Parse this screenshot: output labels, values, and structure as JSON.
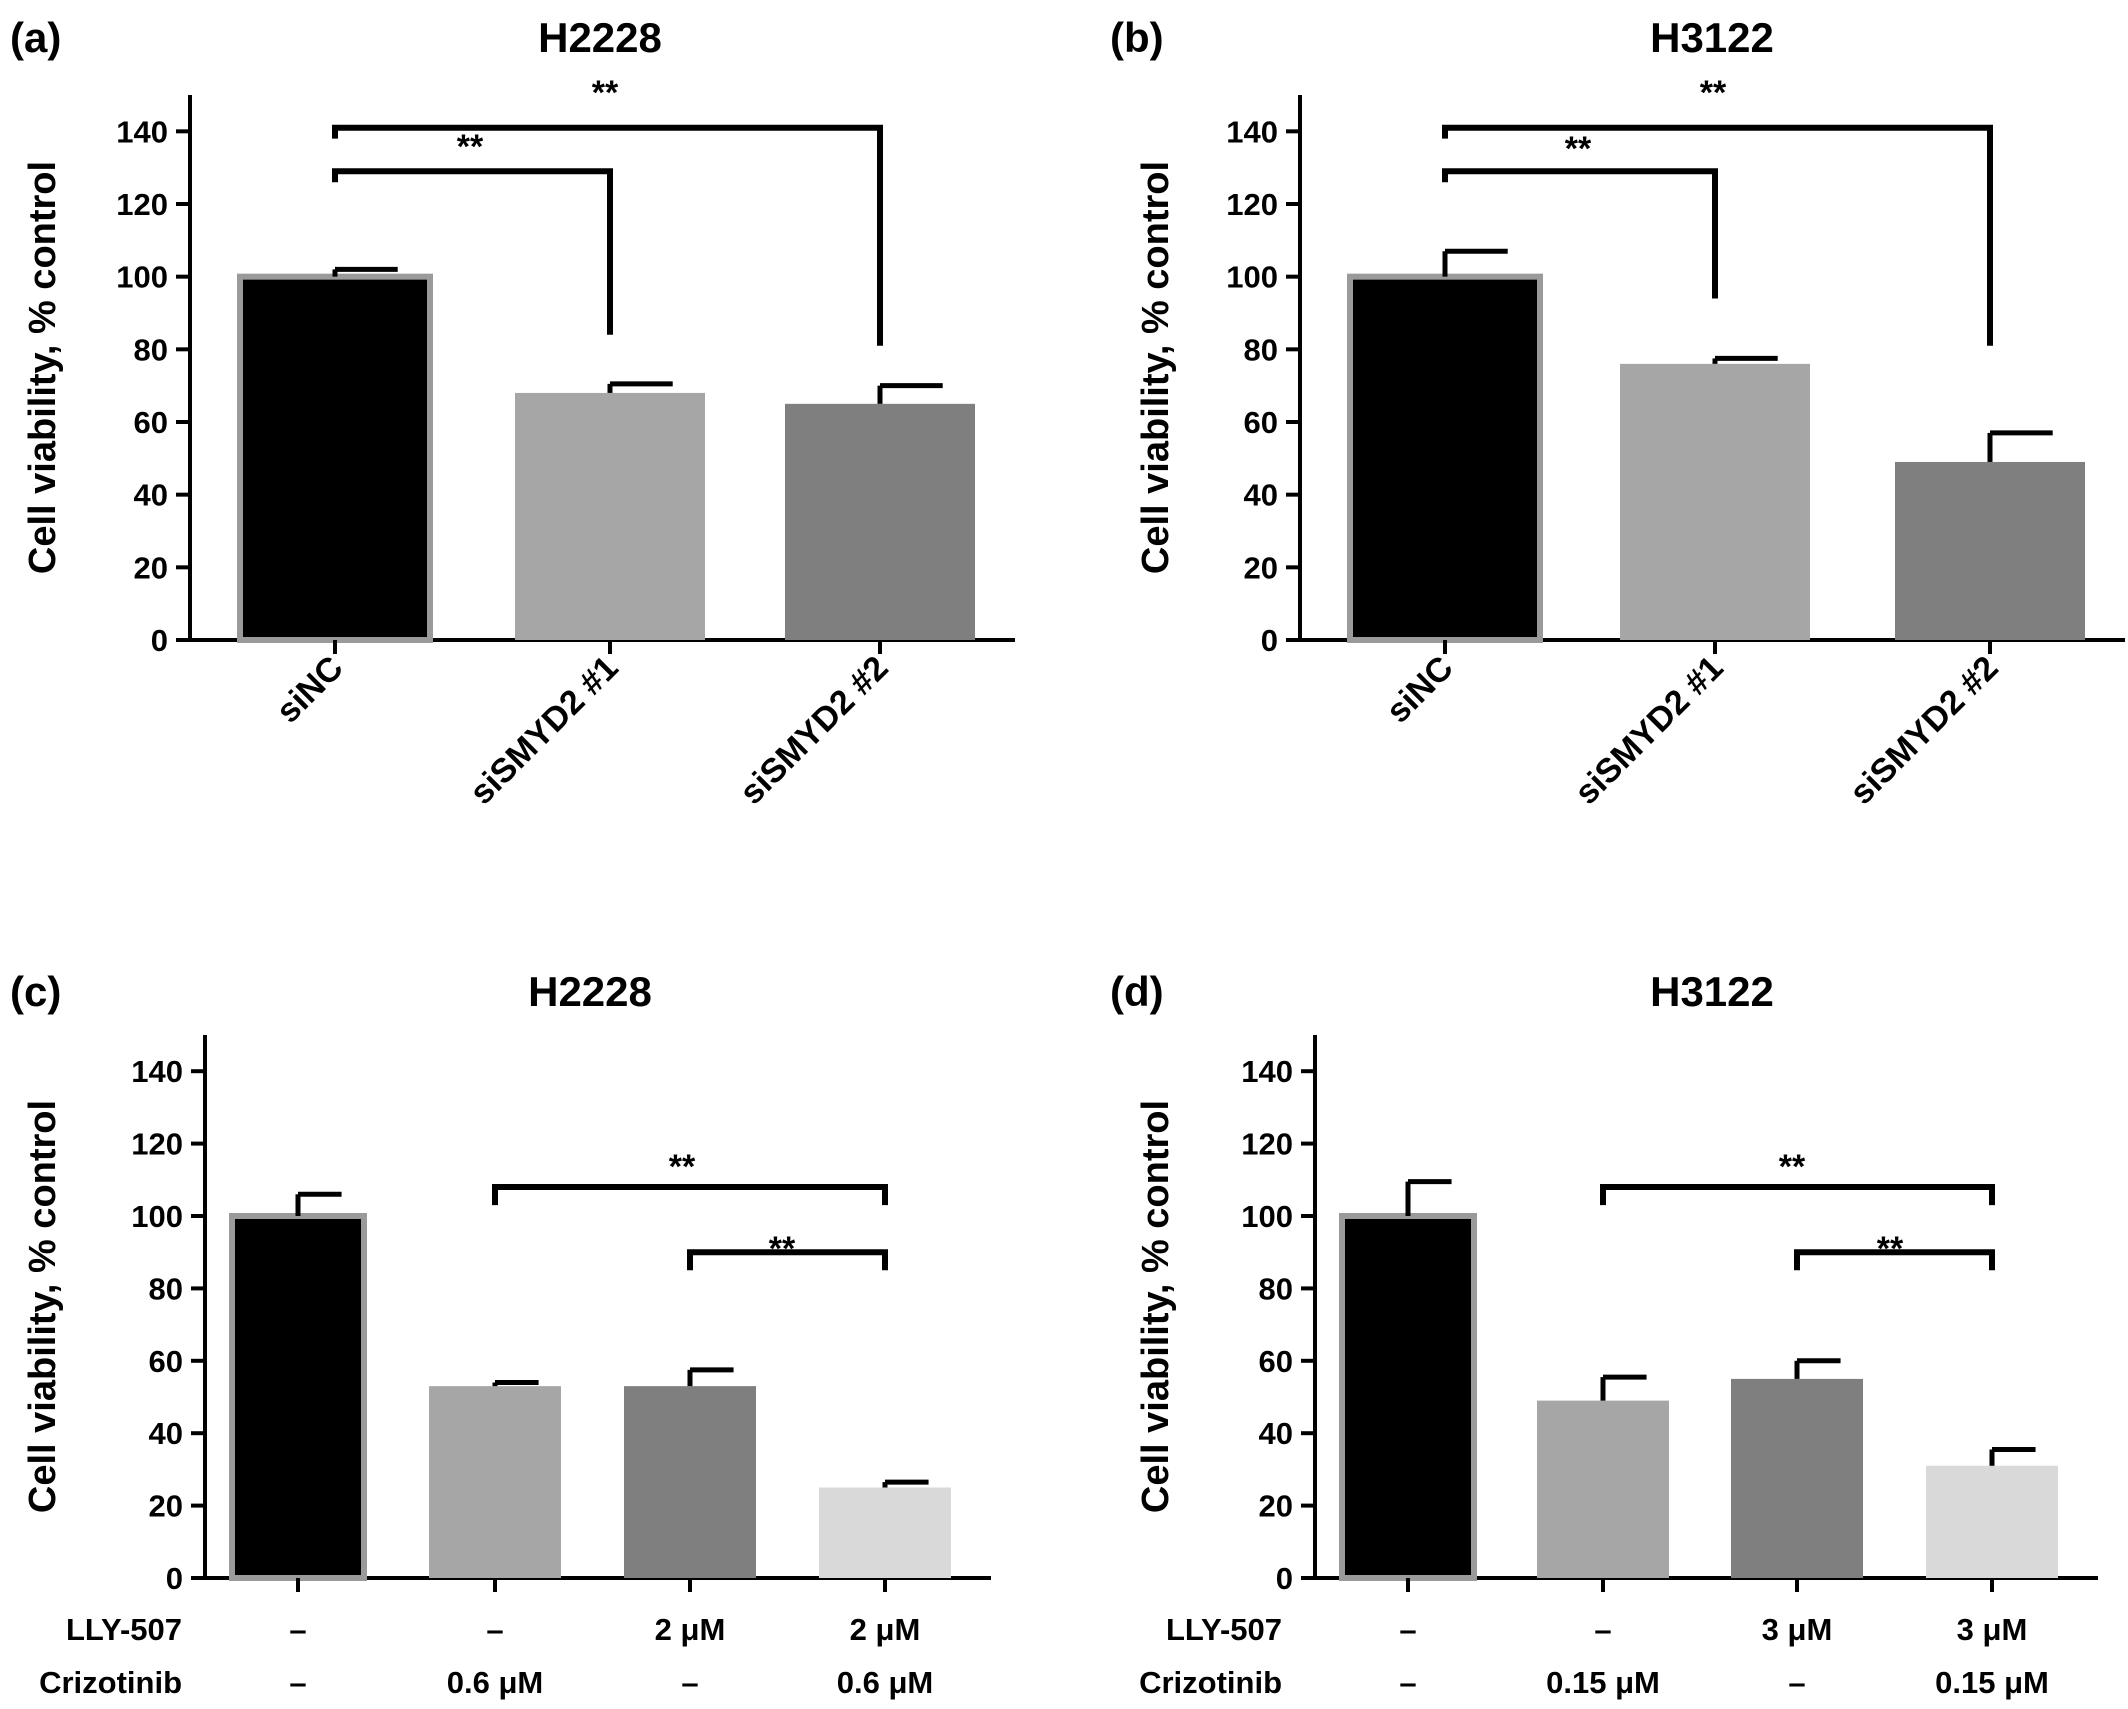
{
  "figure": {
    "panels_order": [
      "a",
      "b",
      "c",
      "d"
    ]
  },
  "chart_data": [
    {
      "id": "a",
      "type": "bar",
      "panel_label": "(a)",
      "title": "H2228",
      "ylabel": "Cell viability, % control",
      "ylim": [
        0,
        150
      ],
      "yticks": [
        0,
        20,
        40,
        60,
        80,
        100,
        120,
        140
      ],
      "categories": [
        "siNC",
        "siSMYD2 #1",
        "siSMYD2 #2"
      ],
      "values": [
        100,
        68,
        65
      ],
      "errors": [
        2,
        2.5,
        5
      ],
      "bar_colors": [
        "#000000",
        "#a6a6a6",
        "#7f7f7f"
      ],
      "significance": [
        {
          "from": 0,
          "to": 1,
          "label": "**"
        },
        {
          "from": 0,
          "to": 2,
          "label": "**"
        }
      ]
    },
    {
      "id": "b",
      "type": "bar",
      "panel_label": "(b)",
      "title": "H3122",
      "ylabel": "Cell viability, % control",
      "ylim": [
        0,
        150
      ],
      "yticks": [
        0,
        20,
        40,
        60,
        80,
        100,
        120,
        140
      ],
      "categories": [
        "siNC",
        "siSMYD2 #1",
        "siSMYD2 #2"
      ],
      "values": [
        100,
        76,
        49
      ],
      "errors": [
        7,
        1.5,
        8
      ],
      "bar_colors": [
        "#000000",
        "#a6a6a6",
        "#7f7f7f"
      ],
      "significance": [
        {
          "from": 0,
          "to": 1,
          "label": "**"
        },
        {
          "from": 0,
          "to": 2,
          "label": "**"
        }
      ]
    },
    {
      "id": "c",
      "type": "bar",
      "panel_label": "(c)",
      "title": "H2228",
      "ylabel": "Cell viability, % control",
      "ylim": [
        0,
        150
      ],
      "yticks": [
        0,
        20,
        40,
        60,
        80,
        100,
        120,
        140
      ],
      "treatment_rows": [
        {
          "name": "LLY-507",
          "values": [
            "–",
            "–",
            "2 μM",
            "2 μM"
          ]
        },
        {
          "name": "Crizotinib",
          "values": [
            "–",
            "0.6 μM",
            "–",
            "0.6 μM"
          ]
        }
      ],
      "values": [
        100,
        53,
        53,
        25
      ],
      "errors": [
        6,
        1,
        4.5,
        1.5
      ],
      "bar_colors": [
        "#000000",
        "#a6a6a6",
        "#7f7f7f",
        "#d9d9d9"
      ],
      "significance": [
        {
          "from": 1,
          "to": 3,
          "label": "**"
        },
        {
          "from": 2,
          "to": 3,
          "label": "**"
        }
      ]
    },
    {
      "id": "d",
      "type": "bar",
      "panel_label": "(d)",
      "title": "H3122",
      "ylabel": "Cell viability, % control",
      "ylim": [
        0,
        150
      ],
      "yticks": [
        0,
        20,
        40,
        60,
        80,
        100,
        120,
        140
      ],
      "treatment_rows": [
        {
          "name": "LLY-507",
          "values": [
            "–",
            "–",
            "3 μM",
            "3 μM"
          ]
        },
        {
          "name": "Crizotinib",
          "values": [
            "–",
            "0.15 μM",
            "–",
            "0.15 μM"
          ]
        }
      ],
      "values": [
        100,
        49,
        55,
        31
      ],
      "errors": [
        9.5,
        6.5,
        5,
        4.5
      ],
      "bar_colors": [
        "#000000",
        "#a6a6a6",
        "#7f7f7f",
        "#d9d9d9"
      ],
      "significance": [
        {
          "from": 1,
          "to": 3,
          "label": "**"
        },
        {
          "from": 2,
          "to": 3,
          "label": "**"
        }
      ]
    }
  ]
}
